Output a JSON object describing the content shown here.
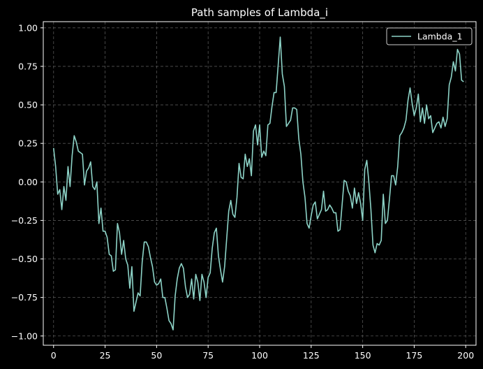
{
  "chart_data": {
    "type": "line",
    "title": "Path samples of Lambda_i",
    "xlabel": "",
    "ylabel": "",
    "xlim": [
      -5,
      205
    ],
    "ylim": [
      -1.06,
      1.04
    ],
    "xticks": [
      0,
      25,
      50,
      75,
      100,
      125,
      150,
      175,
      200
    ],
    "xtick_labels": [
      "0",
      "25",
      "50",
      "75",
      "100",
      "125",
      "150",
      "175",
      "200"
    ],
    "yticks": [
      -1.0,
      -0.75,
      -0.5,
      -0.25,
      0.0,
      0.25,
      0.5,
      0.75,
      1.0
    ],
    "ytick_labels": [
      "−1.00",
      "−0.75",
      "−0.50",
      "−0.25",
      "0.00",
      "0.25",
      "0.50",
      "0.75",
      "1.00"
    ],
    "grid": true,
    "legend_position": "top-right",
    "colors": {
      "background": "#000000",
      "axes": "#ffffff",
      "grid": "#555555",
      "line": "#8dd3c7"
    },
    "series": [
      {
        "name": "Lambda_1",
        "color": "#8dd3c7",
        "x": [
          0,
          1,
          2,
          3,
          4,
          5,
          6,
          7,
          8,
          9,
          10,
          11,
          12,
          13,
          14,
          15,
          16,
          17,
          18,
          19,
          20,
          21,
          22,
          23,
          24,
          25,
          26,
          27,
          28,
          29,
          30,
          31,
          32,
          33,
          34,
          35,
          36,
          37,
          38,
          39,
          40,
          41,
          42,
          43,
          44,
          45,
          46,
          47,
          48,
          49,
          50,
          51,
          52,
          53,
          54,
          55,
          56,
          57,
          58,
          59,
          60,
          61,
          62,
          63,
          64,
          65,
          66,
          67,
          68,
          69,
          70,
          71,
          72,
          73,
          74,
          75,
          76,
          77,
          78,
          79,
          80,
          81,
          82,
          83,
          84,
          85,
          86,
          87,
          88,
          89,
          90,
          91,
          92,
          93,
          94,
          95,
          96,
          97,
          98,
          99,
          100,
          101,
          102,
          103,
          104,
          105,
          106,
          107,
          108,
          109,
          110,
          111,
          112,
          113,
          114,
          115,
          116,
          117,
          118,
          119,
          120,
          121,
          122,
          123,
          124,
          125,
          126,
          127,
          128,
          129,
          130,
          131,
          132,
          133,
          134,
          135,
          136,
          137,
          138,
          139,
          140,
          141,
          142,
          143,
          144,
          145,
          146,
          147,
          148,
          149,
          150,
          151,
          152,
          153,
          154,
          155,
          156,
          157,
          158,
          159,
          160,
          161,
          162,
          163,
          164,
          165,
          166,
          167,
          168,
          169,
          170,
          171,
          172,
          173,
          174,
          175,
          176,
          177,
          178,
          179,
          180,
          181,
          182,
          183,
          184,
          185,
          186,
          187,
          188,
          189,
          190,
          191,
          192,
          193,
          194,
          195,
          196,
          197,
          198,
          199
        ],
        "y": [
          0.22,
          0.1,
          -0.08,
          -0.05,
          -0.18,
          -0.03,
          -0.12,
          0.1,
          -0.03,
          0.17,
          0.3,
          0.26,
          0.2,
          0.19,
          0.18,
          -0.02,
          0.07,
          0.09,
          0.13,
          -0.03,
          -0.05,
          0.0,
          -0.27,
          -0.17,
          -0.32,
          -0.32,
          -0.36,
          -0.47,
          -0.48,
          -0.58,
          -0.57,
          -0.27,
          -0.33,
          -0.47,
          -0.38,
          -0.5,
          -0.54,
          -0.69,
          -0.55,
          -0.84,
          -0.78,
          -0.72,
          -0.74,
          -0.52,
          -0.39,
          -0.39,
          -0.42,
          -0.49,
          -0.55,
          -0.65,
          -0.67,
          -0.66,
          -0.63,
          -0.75,
          -0.75,
          -0.82,
          -0.9,
          -0.92,
          -0.96,
          -0.74,
          -0.63,
          -0.56,
          -0.53,
          -0.56,
          -0.68,
          -0.75,
          -0.73,
          -0.63,
          -0.76,
          -0.6,
          -0.65,
          -0.77,
          -0.6,
          -0.65,
          -0.75,
          -0.62,
          -0.59,
          -0.43,
          -0.33,
          -0.3,
          -0.48,
          -0.57,
          -0.65,
          -0.55,
          -0.37,
          -0.19,
          -0.12,
          -0.21,
          -0.23,
          -0.1,
          0.12,
          0.03,
          0.02,
          0.18,
          0.1,
          0.15,
          0.04,
          0.33,
          0.37,
          0.24,
          0.37,
          0.16,
          0.2,
          0.17,
          0.37,
          0.38,
          0.49,
          0.58,
          0.58,
          0.76,
          0.94,
          0.7,
          0.62,
          0.36,
          0.38,
          0.4,
          0.48,
          0.48,
          0.47,
          0.28,
          0.18,
          0.0,
          -0.1,
          -0.27,
          -0.3,
          -0.22,
          -0.15,
          -0.13,
          -0.24,
          -0.21,
          -0.18,
          -0.06,
          -0.19,
          -0.18,
          -0.15,
          -0.17,
          -0.2,
          -0.2,
          -0.32,
          -0.31,
          -0.15,
          0.01,
          0.0,
          -0.06,
          -0.09,
          -0.17,
          -0.04,
          -0.14,
          -0.07,
          -0.14,
          -0.25,
          0.08,
          0.14,
          0.0,
          -0.18,
          -0.41,
          -0.46,
          -0.4,
          -0.41,
          -0.38,
          -0.08,
          -0.27,
          -0.25,
          -0.11,
          0.04,
          0.04,
          -0.02,
          0.1,
          0.3,
          0.32,
          0.35,
          0.4,
          0.53,
          0.61,
          0.51,
          0.43,
          0.48,
          0.57,
          0.39,
          0.48,
          0.38,
          0.5,
          0.41,
          0.43,
          0.32,
          0.35,
          0.38,
          0.39,
          0.35,
          0.42,
          0.36,
          0.41,
          0.63,
          0.68,
          0.78,
          0.72,
          0.86,
          0.83,
          0.66,
          0.65
        ]
      }
    ]
  }
}
